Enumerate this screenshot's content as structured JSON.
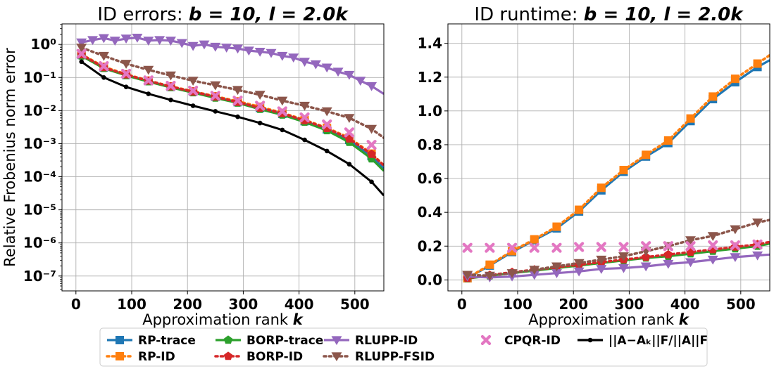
{
  "chart_data": [
    {
      "type": "line",
      "title_prefix": "ID errors: ",
      "title_math": "b = 10, l = 2.0k",
      "xlabel": "Approximation rank",
      "xlabel_math": "k",
      "ylabel": "Relative Frobenius norm error",
      "yscale": "log",
      "xlim": [
        -25,
        552
      ],
      "ylim_exp": [
        -7.45,
        0.62
      ],
      "x_ticks": [
        0,
        100,
        200,
        300,
        400,
        500
      ],
      "y_tick_labels": [
        "10⁻⁷",
        "10⁻⁶",
        "10⁻⁵",
        "10⁻⁴",
        "10⁻³",
        "10⁻²",
        "10⁻¹",
        "10⁰"
      ],
      "y_tick_exps": [
        -7,
        -6,
        -5,
        -4,
        -3,
        -2,
        -1,
        0
      ],
      "grid": true,
      "series": [
        {
          "name": "RP-trace",
          "color": "#1f77b4",
          "style": "solid",
          "marker": "square",
          "x": [
            10,
            50,
            90,
            130,
            170,
            210,
            250,
            290,
            330,
            370,
            410,
            450,
            490,
            530,
            552
          ],
          "y": [
            0.48,
            0.2,
            0.12,
            0.078,
            0.052,
            0.037,
            0.026,
            0.018,
            0.012,
            0.008,
            0.0048,
            0.0027,
            0.0013,
            0.00042,
            0.00018
          ]
        },
        {
          "name": "RP-ID",
          "color": "#ff7f0e",
          "style": "dotted",
          "marker": "square",
          "x": [
            10,
            50,
            90,
            130,
            170,
            210,
            250,
            290,
            330,
            370,
            410,
            450,
            490,
            530,
            552
          ],
          "y": [
            0.5,
            0.21,
            0.125,
            0.08,
            0.054,
            0.038,
            0.027,
            0.019,
            0.013,
            0.0085,
            0.0052,
            0.003,
            0.0015,
            0.0005,
            0.00022
          ]
        },
        {
          "name": "BORP-trace",
          "color": "#2ca02c",
          "style": "solid",
          "marker": "pentagon",
          "x": [
            10,
            50,
            90,
            130,
            170,
            210,
            250,
            290,
            330,
            370,
            410,
            450,
            490,
            530,
            552
          ],
          "y": [
            0.45,
            0.19,
            0.115,
            0.075,
            0.05,
            0.035,
            0.024,
            0.017,
            0.011,
            0.0074,
            0.0045,
            0.0025,
            0.0011,
            0.00035,
            0.00015
          ]
        },
        {
          "name": "BORP-ID",
          "color": "#d62728",
          "style": "dotted",
          "marker": "pentagon",
          "x": [
            10,
            50,
            90,
            130,
            170,
            210,
            250,
            290,
            330,
            370,
            410,
            450,
            490,
            530,
            552
          ],
          "y": [
            0.49,
            0.2,
            0.122,
            0.079,
            0.053,
            0.037,
            0.026,
            0.018,
            0.012,
            0.0082,
            0.005,
            0.0029,
            0.0014,
            0.00048,
            0.00022
          ]
        },
        {
          "name": "RLUPP-ID",
          "color": "#9467bd",
          "style": "solid",
          "marker": "triangle_down",
          "x": [
            10,
            30,
            50,
            70,
            90,
            110,
            130,
            150,
            170,
            190,
            210,
            230,
            250,
            270,
            290,
            310,
            330,
            350,
            370,
            390,
            410,
            430,
            450,
            470,
            490,
            510,
            530,
            552
          ],
          "y": [
            1.15,
            1.35,
            1.55,
            1.3,
            1.5,
            1.6,
            1.3,
            1.35,
            1.3,
            1.1,
            0.9,
            1.0,
            0.85,
            0.8,
            0.75,
            0.65,
            0.6,
            0.55,
            0.45,
            0.4,
            0.3,
            0.25,
            0.2,
            0.15,
            0.12,
            0.08,
            0.055,
            0.032
          ]
        },
        {
          "name": "RLUPP-FSID",
          "color": "#8c564b",
          "style": "dotted",
          "marker": "triangle_down",
          "x": [
            10,
            50,
            90,
            130,
            170,
            210,
            250,
            290,
            330,
            370,
            410,
            450,
            490,
            530,
            552
          ],
          "y": [
            0.8,
            0.45,
            0.26,
            0.17,
            0.115,
            0.08,
            0.058,
            0.042,
            0.03,
            0.02,
            0.014,
            0.0095,
            0.006,
            0.0028,
            0.0015
          ]
        },
        {
          "name": "CPQR-ID",
          "color": "#e377c2",
          "style": "none",
          "marker": "x",
          "x": [
            10,
            50,
            90,
            130,
            170,
            210,
            250,
            290,
            330,
            370,
            410,
            450,
            490,
            530
          ],
          "y": [
            0.52,
            0.22,
            0.13,
            0.082,
            0.056,
            0.04,
            0.028,
            0.02,
            0.014,
            0.0095,
            0.0062,
            0.0038,
            0.0022,
            0.00092
          ]
        },
        {
          "name": "||A−Aₖ||F/||A||F",
          "color": "#000000",
          "style": "solid",
          "marker": "dot",
          "x": [
            10,
            50,
            90,
            130,
            170,
            210,
            250,
            290,
            330,
            370,
            410,
            450,
            490,
            530,
            552
          ],
          "y": [
            0.3,
            0.1,
            0.052,
            0.032,
            0.021,
            0.014,
            0.0095,
            0.0065,
            0.0042,
            0.0026,
            0.0013,
            0.0006,
            0.00024,
            7e-05,
            2.7e-05
          ]
        }
      ]
    },
    {
      "type": "line",
      "title_prefix": "ID runtime: ",
      "title_math": "b = 10, l = 2.0k",
      "xlabel": "Approximation rank",
      "xlabel_math": "k",
      "ylabel": "",
      "yscale": "linear",
      "xlim": [
        -25,
        552
      ],
      "ylim": [
        -0.065,
        1.515
      ],
      "x_ticks": [
        0,
        100,
        200,
        300,
        400,
        500
      ],
      "y_ticks": [
        0.0,
        0.2,
        0.4,
        0.6,
        0.8,
        1.0,
        1.2,
        1.4
      ],
      "grid": true,
      "series": [
        {
          "name": "RP-trace",
          "color": "#1f77b4",
          "style": "solid",
          "marker": "square",
          "x": [
            10,
            50,
            90,
            130,
            170,
            210,
            250,
            290,
            330,
            370,
            410,
            450,
            490,
            530,
            552
          ],
          "y": [
            0.01,
            0.085,
            0.165,
            0.235,
            0.305,
            0.405,
            0.53,
            0.64,
            0.73,
            0.81,
            0.94,
            1.07,
            1.17,
            1.26,
            1.3
          ]
        },
        {
          "name": "RP-ID",
          "color": "#ff7f0e",
          "style": "dotted",
          "marker": "square",
          "x": [
            10,
            50,
            90,
            130,
            170,
            210,
            250,
            290,
            330,
            370,
            410,
            450,
            490,
            530,
            552
          ],
          "y": [
            0.01,
            0.09,
            0.17,
            0.24,
            0.315,
            0.415,
            0.545,
            0.65,
            0.74,
            0.825,
            0.955,
            1.085,
            1.19,
            1.28,
            1.33
          ]
        },
        {
          "name": "BORP-trace",
          "color": "#2ca02c",
          "style": "solid",
          "marker": "pentagon",
          "x": [
            10,
            50,
            90,
            130,
            170,
            210,
            250,
            290,
            330,
            370,
            410,
            450,
            490,
            530,
            552
          ],
          "y": [
            0.008,
            0.025,
            0.04,
            0.055,
            0.07,
            0.085,
            0.1,
            0.115,
            0.13,
            0.14,
            0.155,
            0.17,
            0.185,
            0.2,
            0.215
          ]
        },
        {
          "name": "BORP-ID",
          "color": "#d62728",
          "style": "dotted",
          "marker": "pentagon",
          "x": [
            10,
            50,
            90,
            130,
            170,
            210,
            250,
            290,
            330,
            370,
            410,
            450,
            490,
            530,
            552
          ],
          "y": [
            0.01,
            0.028,
            0.045,
            0.06,
            0.075,
            0.09,
            0.105,
            0.12,
            0.135,
            0.15,
            0.165,
            0.18,
            0.195,
            0.21,
            0.225
          ]
        },
        {
          "name": "RLUPP-ID",
          "color": "#9467bd",
          "style": "solid",
          "marker": "triangle_down",
          "x": [
            10,
            50,
            90,
            130,
            170,
            210,
            250,
            290,
            330,
            370,
            410,
            450,
            490,
            530,
            552
          ],
          "y": [
            0.02,
            0.015,
            0.02,
            0.03,
            0.04,
            0.05,
            0.065,
            0.07,
            0.08,
            0.095,
            0.105,
            0.12,
            0.135,
            0.145,
            0.15
          ]
        },
        {
          "name": "RLUPP-FSID",
          "color": "#8c564b",
          "style": "dotted",
          "marker": "triangle_down",
          "x": [
            10,
            50,
            90,
            130,
            170,
            210,
            250,
            290,
            330,
            370,
            410,
            450,
            490,
            530,
            552
          ],
          "y": [
            0.03,
            0.025,
            0.04,
            0.06,
            0.08,
            0.1,
            0.12,
            0.14,
            0.17,
            0.2,
            0.235,
            0.26,
            0.3,
            0.34,
            0.355
          ]
        },
        {
          "name": "CPQR-ID",
          "color": "#e377c2",
          "style": "none",
          "marker": "x",
          "x": [
            10,
            50,
            90,
            130,
            170,
            210,
            250,
            290,
            330,
            370,
            410,
            450,
            490,
            530
          ],
          "y": [
            0.19,
            0.19,
            0.19,
            0.19,
            0.19,
            0.195,
            0.195,
            0.195,
            0.2,
            0.2,
            0.2,
            0.205,
            0.205,
            0.21
          ]
        }
      ]
    }
  ],
  "legend": {
    "placement": "bottom-center",
    "entries": [
      {
        "label": "RP-trace",
        "color": "#1f77b4",
        "style": "solid",
        "marker": "square"
      },
      {
        "label": "RP-ID",
        "color": "#ff7f0e",
        "style": "dotted",
        "marker": "square"
      },
      {
        "label": "BORP-trace",
        "color": "#2ca02c",
        "style": "solid",
        "marker": "pentagon"
      },
      {
        "label": "BORP-ID",
        "color": "#d62728",
        "style": "dotted",
        "marker": "pentagon"
      },
      {
        "label": "RLUPP-ID",
        "color": "#9467bd",
        "style": "solid",
        "marker": "triangle_down"
      },
      {
        "label": "RLUPP-FSID",
        "color": "#8c564b",
        "style": "dotted",
        "marker": "triangle_down"
      },
      {
        "label": "CPQR-ID",
        "color": "#e377c2",
        "style": "none",
        "marker": "x"
      },
      {
        "label": "||A−Aₖ||F/||A||F",
        "color": "#000000",
        "style": "solid",
        "marker": "dot"
      }
    ]
  }
}
